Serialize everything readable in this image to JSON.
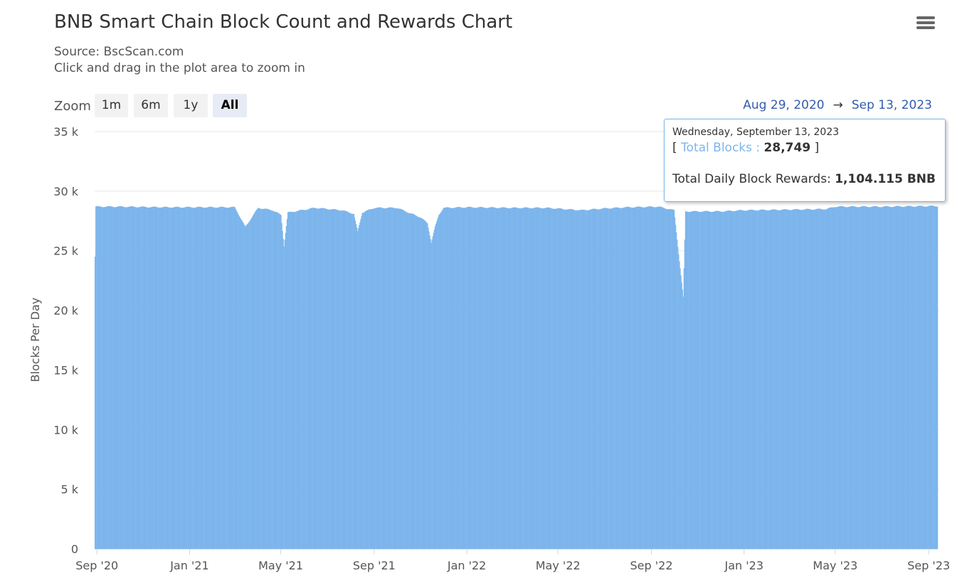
{
  "header": {
    "title": "BNB Smart Chain Block Count and Rewards Chart",
    "source": "Source: BscScan.com",
    "hint": "Click and drag in the plot area to zoom in"
  },
  "toolbar": {
    "menu_icon": "hamburger-menu-icon",
    "zoom_label": "Zoom",
    "zoom_buttons": [
      "1m",
      "6m",
      "1y",
      "All"
    ],
    "active_zoom": "All",
    "range_from": "Aug 29, 2020",
    "range_arrow": "→",
    "range_to": "Sep 13, 2023"
  },
  "tooltip": {
    "date": "Wednesday, September 13, 2023",
    "open_bracket": "[",
    "series_label": "Total Blocks",
    "separator": ":",
    "value": "28,749",
    "close_bracket": "]",
    "rewards_label": "Total Daily Block Rewards:",
    "rewards_value": "1,104.115 BNB"
  },
  "colors": {
    "bar": "#7cb5ec",
    "tooltip_border": "#7cb5ec",
    "range_text": "#335cad",
    "grid": "#e6e6e6"
  },
  "chart_data": {
    "type": "bar",
    "title": "BNB Smart Chain Block Count and Rewards Chart",
    "xlabel": "",
    "ylabel": "Blocks Per Day",
    "x_start": "2020-08-29",
    "x_end": "2023-09-13",
    "ylim": [
      0,
      35000
    ],
    "yticks": [
      0,
      5000,
      10000,
      15000,
      20000,
      25000,
      30000,
      35000
    ],
    "ytick_labels": [
      "0",
      "5 k",
      "10 k",
      "15 k",
      "20 k",
      "25 k",
      "30 k",
      "35 k"
    ],
    "xticks": [
      "2020-09-01",
      "2021-01-01",
      "2021-05-01",
      "2021-09-01",
      "2022-01-01",
      "2022-05-01",
      "2022-09-01",
      "2023-01-01",
      "2023-05-01",
      "2023-09-01"
    ],
    "xtick_labels": [
      "Sep '20",
      "Jan '21",
      "May '21",
      "Sep '21",
      "Jan '22",
      "May '22",
      "Sep '22",
      "Jan '23",
      "May '23",
      "Sep '23"
    ],
    "grid": true,
    "legend": "none",
    "series": [
      {
        "values_by_date": [
          [
            "2020-08-29",
            24500
          ],
          [
            "2020-08-30",
            28700
          ],
          [
            "2020-10-01",
            28700
          ],
          [
            "2020-12-01",
            28650
          ],
          [
            "2021-02-01",
            28650
          ],
          [
            "2021-03-01",
            28650
          ],
          [
            "2021-03-15",
            27000
          ],
          [
            "2021-04-01",
            28600
          ],
          [
            "2021-04-20",
            28400
          ],
          [
            "2021-05-01",
            28000
          ],
          [
            "2021-05-05",
            25400
          ],
          [
            "2021-05-10",
            28200
          ],
          [
            "2021-06-15",
            28600
          ],
          [
            "2021-07-20",
            28400
          ],
          [
            "2021-08-05",
            28100
          ],
          [
            "2021-08-10",
            26600
          ],
          [
            "2021-08-16",
            28200
          ],
          [
            "2021-09-01",
            28600
          ],
          [
            "2021-10-01",
            28600
          ],
          [
            "2021-10-20",
            28100
          ],
          [
            "2021-11-01",
            27800
          ],
          [
            "2021-11-10",
            27300
          ],
          [
            "2021-11-15",
            25700
          ],
          [
            "2021-11-20",
            27000
          ],
          [
            "2021-11-25",
            28000
          ],
          [
            "2021-12-01",
            28600
          ],
          [
            "2022-01-01",
            28650
          ],
          [
            "2022-03-01",
            28600
          ],
          [
            "2022-04-15",
            28600
          ],
          [
            "2022-06-01",
            28400
          ],
          [
            "2022-07-01",
            28550
          ],
          [
            "2022-08-01",
            28650
          ],
          [
            "2022-09-10",
            28700
          ],
          [
            "2022-10-01",
            28400
          ],
          [
            "2022-10-13",
            21100
          ],
          [
            "2022-10-16",
            28300
          ],
          [
            "2022-12-01",
            28300
          ],
          [
            "2023-01-01",
            28400
          ],
          [
            "2023-03-01",
            28450
          ],
          [
            "2023-04-20",
            28500
          ],
          [
            "2023-05-01",
            28700
          ],
          [
            "2023-07-01",
            28700
          ],
          [
            "2023-09-13",
            28749
          ]
        ]
      }
    ]
  }
}
